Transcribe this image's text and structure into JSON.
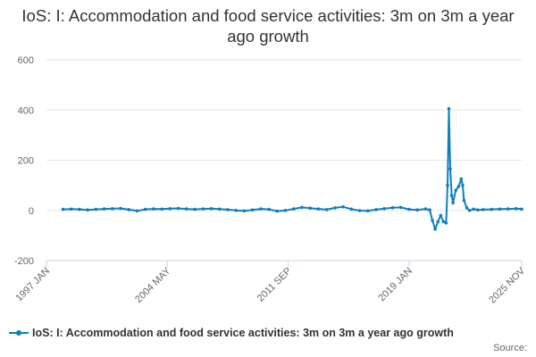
{
  "chart_data": {
    "type": "line",
    "title": "IoS: I: Accommodation and food service activities: 3m on 3m a year ago growth",
    "xlabel": "",
    "ylabel": "",
    "ylim": [
      -200,
      600
    ],
    "yticks": [
      -200,
      0,
      200,
      400,
      600
    ],
    "xticks": [
      "1997 JAN",
      "2004 MAY",
      "2011 SEP",
      "2019 JAN",
      "2025 NOV"
    ],
    "xlim": [
      "1997 JAN",
      "2025 NOV"
    ],
    "grid": true,
    "legend_position": "bottom",
    "series": [
      {
        "name": "IoS: I: Accommodation and food service activities: 3m on 3m a year ago growth",
        "color": "#0f7fbf",
        "points": [
          [
            "1998 JAN",
            4
          ],
          [
            "1998 JUL",
            5
          ],
          [
            "1999 JAN",
            4
          ],
          [
            "1999 JUL",
            2
          ],
          [
            "2000 JAN",
            4
          ],
          [
            "2000 JUL",
            6
          ],
          [
            "2001 JAN",
            7
          ],
          [
            "2001 JUL",
            8
          ],
          [
            "2002 JAN",
            3
          ],
          [
            "2002 JUL",
            -2
          ],
          [
            "2003 JAN",
            4
          ],
          [
            "2003 JUL",
            6
          ],
          [
            "2004 JAN",
            5
          ],
          [
            "2004 JUL",
            7
          ],
          [
            "2005 JAN",
            8
          ],
          [
            "2005 JUL",
            6
          ],
          [
            "2006 JAN",
            4
          ],
          [
            "2006 JUL",
            6
          ],
          [
            "2007 JAN",
            7
          ],
          [
            "2007 JUL",
            5
          ],
          [
            "2008 JAN",
            3
          ],
          [
            "2008 JUL",
            0
          ],
          [
            "2009 JAN",
            -2
          ],
          [
            "2009 JUL",
            2
          ],
          [
            "2010 JAN",
            6
          ],
          [
            "2010 JUL",
            4
          ],
          [
            "2011 JAN",
            -3
          ],
          [
            "2011 JUL",
            0
          ],
          [
            "2012 JAN",
            6
          ],
          [
            "2012 JUL",
            12
          ],
          [
            "2013 JAN",
            9
          ],
          [
            "2013 JUL",
            6
          ],
          [
            "2014 JAN",
            3
          ],
          [
            "2014 JUL",
            10
          ],
          [
            "2015 JAN",
            14
          ],
          [
            "2015 JUL",
            5
          ],
          [
            "2016 JAN",
            -1
          ],
          [
            "2016 JUL",
            -2
          ],
          [
            "2017 JAN",
            3
          ],
          [
            "2017 JUL",
            7
          ],
          [
            "2018 JAN",
            11
          ],
          [
            "2018 JUL",
            12
          ],
          [
            "2019 JAN",
            4
          ],
          [
            "2019 JUL",
            2
          ],
          [
            "2020 JAN",
            6
          ],
          [
            "2020 APR",
            2
          ],
          [
            "2020 JUN",
            -40
          ],
          [
            "2020 AUG",
            -75
          ],
          [
            "2020 OCT",
            -45
          ],
          [
            "2020 DEC",
            -20
          ],
          [
            "2021 FEB",
            -45
          ],
          [
            "2021 APR",
            -50
          ],
          [
            "2021 MAY",
            100
          ],
          [
            "2021 JUN",
            405
          ],
          [
            "2021 JUL",
            165
          ],
          [
            "2021 AUG",
            60
          ],
          [
            "2021 SEP",
            30
          ],
          [
            "2021 NOV",
            80
          ],
          [
            "2022 JAN",
            95
          ],
          [
            "2022 MAR",
            125
          ],
          [
            "2022 APR",
            100
          ],
          [
            "2022 MAY",
            40
          ],
          [
            "2022 JUL",
            10
          ],
          [
            "2022 SEP",
            0
          ],
          [
            "2022 DEC",
            5
          ],
          [
            "2023 MAR",
            2
          ],
          [
            "2023 JUL",
            3
          ],
          [
            "2024 JAN",
            4
          ],
          [
            "2024 JUL",
            5
          ],
          [
            "2025 JAN",
            6
          ],
          [
            "2025 JUL",
            7
          ],
          [
            "2025 NOV",
            5
          ]
        ]
      }
    ]
  },
  "source_label": "Source:"
}
